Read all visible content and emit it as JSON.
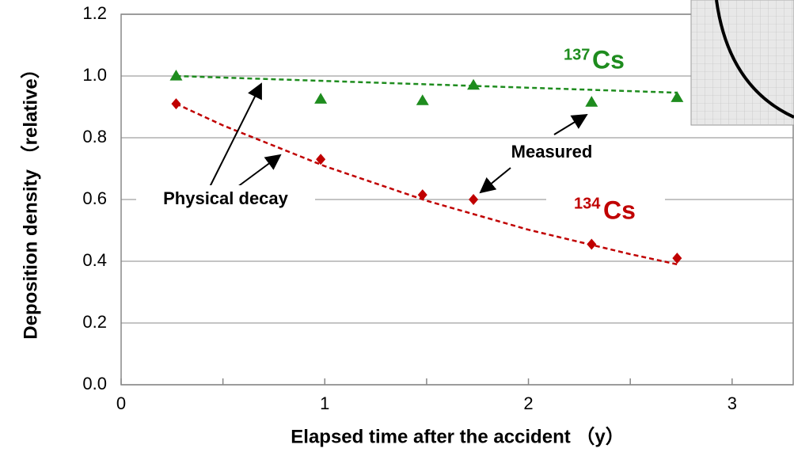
{
  "chart_data": {
    "type": "scatter",
    "x_label": "Elapsed time after the accident （y）",
    "y_label": "Deposition density （relative）",
    "xlim": [
      0,
      3.3
    ],
    "ylim": [
      0,
      1.2
    ],
    "xticks": [
      0,
      1,
      2,
      3
    ],
    "xminorticks": [
      0.5,
      1.5,
      2.5
    ],
    "yticks": [
      {
        "value": 0,
        "label": "0.0"
      },
      {
        "value": 0.2,
        "label": "0.2"
      },
      {
        "value": 0.4,
        "label": "0.4"
      },
      {
        "value": 0.6,
        "label": "0.6"
      },
      {
        "value": 0.8,
        "label": "0.8"
      },
      {
        "value": 1.0,
        "label": "1.0"
      },
      {
        "value": 1.2,
        "label": "1.2"
      }
    ],
    "grid": true,
    "series": [
      {
        "color": "#1e8c1e",
        "style": "triangle",
        "x": [
          0.27,
          0.98,
          1.48,
          1.73,
          2.31,
          2.73
        ],
        "values": [
          1.0,
          0.925,
          0.92,
          0.97,
          0.915,
          0.93
        ]
      },
      {
        "color": "#1e8c1e",
        "style": "dashed",
        "x": [
          0.27,
          2.73
        ],
        "values": [
          1.0,
          0.946
        ]
      },
      {
        "color": "#c00000",
        "style": "diamond",
        "x": [
          0.27,
          0.98,
          1.48,
          1.73,
          2.31,
          2.73
        ],
        "values": [
          0.91,
          0.73,
          0.615,
          0.6,
          0.455,
          0.41
        ]
      },
      {
        "color": "#c00000",
        "style": "dashed",
        "x": [
          0.27,
          0.5,
          1.0,
          1.5,
          2.0,
          2.5,
          2.73
        ],
        "values": [
          0.91,
          0.84,
          0.708,
          0.596,
          0.502,
          0.423,
          0.39
        ]
      }
    ],
    "annotations": {
      "cs137_mass": "137",
      "cs137_symbol": "Cs",
      "cs134_mass": "134",
      "cs134_symbol": "Cs",
      "physical_decay": "Physical decay",
      "measured": "Measured"
    }
  }
}
